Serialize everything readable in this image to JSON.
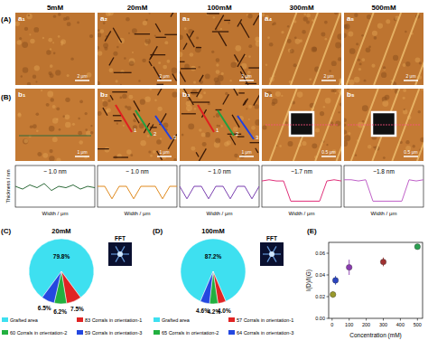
{
  "figure": {
    "row_labels": [
      "(A)",
      "(B)"
    ],
    "a_titles": [
      "5mM",
      "20mM",
      "100mM",
      "300mM",
      "500mM"
    ],
    "a_panels": [
      "a₁",
      "a₂",
      "a₃",
      "a₄",
      "a₅"
    ],
    "b_panels": [
      "b₁",
      "b₂",
      "b₃",
      "b₄",
      "b₅"
    ],
    "a_scale_bars": [
      "2 μm",
      "2 μm",
      "2 μm",
      "2 μm",
      "2 μm"
    ],
    "b_scale_bars": [
      "1 μm",
      "1 μm",
      "1 μm",
      "0.5 μm",
      "0.5 μm"
    ],
    "b2_markers": [
      "1",
      "2",
      "3"
    ],
    "b3_markers": [
      "1",
      "2",
      "3"
    ]
  },
  "chart_data": [
    {
      "type": "line",
      "ylabel": "Thickness / nm",
      "xlabel": "Width / μm",
      "annotation": "~ 1.0 nm",
      "color": "#2e6b3a",
      "tick_labels": false,
      "x": [
        0,
        0.5,
        1,
        1.5,
        2,
        2.5,
        3,
        3.5,
        4,
        4.5,
        5,
        5.5
      ],
      "values": [
        1.0,
        0.8,
        1.1,
        0.9,
        1.2,
        0.7,
        1.0,
        0.9,
        1.1,
        0.8,
        1.0,
        0.9
      ],
      "xlim": [
        0,
        5.5
      ],
      "ylim": [
        -0.5,
        2.5
      ]
    },
    {
      "type": "line",
      "xlabel": "Width / μm",
      "annotation": "~ 1.0 nm",
      "color": "#e08a1e",
      "tick_labels": false,
      "x": [
        0,
        0.5,
        1,
        1.5,
        2,
        2.5,
        3,
        3.5,
        4,
        4.5,
        5,
        5.5
      ],
      "values": [
        1.0,
        1.0,
        0.1,
        1.0,
        1.0,
        0.1,
        1.0,
        1.0,
        1.0,
        0.1,
        1.0,
        1.0
      ],
      "xlim": [
        0,
        5.5
      ],
      "ylim": [
        -0.5,
        2.5
      ]
    },
    {
      "type": "line",
      "xlabel": "Width / μm",
      "annotation": "~ 1.0 nm",
      "color": "#7a3fb0",
      "tick_labels": false,
      "x": [
        0,
        0.5,
        1,
        1.5,
        2,
        2.5,
        3,
        3.5,
        4,
        4.5,
        5,
        5.5
      ],
      "values": [
        1.0,
        0.1,
        1.0,
        1.0,
        0.1,
        1.0,
        1.0,
        0.1,
        1.0,
        1.0,
        0.1,
        1.0
      ],
      "xlim": [
        0,
        5.5
      ],
      "ylim": [
        -0.5,
        2.5
      ]
    },
    {
      "type": "line",
      "xlabel": "Width / μm",
      "annotation": "~1.7 nm",
      "color": "#e0307a",
      "tick_labels": false,
      "x": [
        0,
        0.5,
        1,
        1.5,
        2,
        2.5,
        3,
        3.5,
        4,
        4.5,
        5,
        5.5
      ],
      "values": [
        1.7,
        1.8,
        1.7,
        1.7,
        0,
        0,
        0,
        0,
        0,
        1.7,
        1.8,
        1.7
      ],
      "xlim": [
        0,
        5.5
      ],
      "ylim": [
        -0.5,
        3
      ]
    },
    {
      "type": "line",
      "xlabel": "Width / μm",
      "annotation": "~1.8 nm",
      "color": "#c060c8",
      "tick_labels": false,
      "x": [
        0,
        0.5,
        1,
        1.5,
        2,
        2.5,
        3,
        3.5,
        4,
        4.5,
        5,
        5.5
      ],
      "values": [
        1.8,
        1.8,
        1.7,
        1.8,
        0,
        0,
        0,
        0,
        0,
        1.8,
        1.7,
        1.8
      ],
      "xlim": [
        0,
        5.5
      ],
      "ylim": [
        -0.5,
        3
      ]
    },
    {
      "type": "pie",
      "panel_label": "(C)",
      "title": "20mM",
      "inset_label": "FFT",
      "categories": [
        "Grafted area",
        "83 Corrals in orientation-1",
        "60 Corrals in orientation-2",
        "59 Corrals in orientation-3"
      ],
      "values": [
        79.8,
        7.5,
        6.2,
        6.5
      ],
      "value_labels": [
        "79.8%",
        "7.5%",
        "6.2%",
        "6.5%"
      ],
      "colors": [
        "#3ee0f0",
        "#e02424",
        "#22b040",
        "#2448e0"
      ],
      "data_labels": true
    },
    {
      "type": "pie",
      "panel_label": "(D)",
      "title": "100mM",
      "inset_label": "FFT",
      "categories": [
        "Grafted area",
        "57 Corrals in orientation-1",
        "65 Corrals in orientation-2",
        "64 Corrals in orientation-3"
      ],
      "values": [
        87.2,
        4.0,
        4.2,
        4.6
      ],
      "value_labels": [
        "87.2%",
        "4.0%",
        "4.2%",
        "4.6%"
      ],
      "colors": [
        "#3ee0f0",
        "#e02424",
        "#22b040",
        "#2448e0"
      ],
      "data_labels": true
    },
    {
      "type": "scatter",
      "panel_label": "(E)",
      "xlabel": "Concentration (mM)",
      "ylabel": "I(D)/I(G)",
      "x": [
        5,
        20,
        100,
        300,
        500
      ],
      "values": [
        0.022,
        0.035,
        0.047,
        0.052,
        0.066
      ],
      "errors": [
        0.003,
        0.004,
        0.007,
        0.004,
        0.002
      ],
      "colors": [
        "#9a9a2a",
        "#2a44c0",
        "#8a3ab0",
        "#a03030",
        "#2aa050"
      ],
      "xlim": [
        -20,
        530
      ],
      "ylim": [
        0,
        0.07
      ],
      "xticks": [
        0,
        100,
        200,
        300,
        400,
        500
      ],
      "yticks": [
        {
          "value": 0,
          "label": "0.00"
        },
        {
          "value": 0.02,
          "label": "0.02"
        },
        {
          "value": 0.04,
          "label": "0.04"
        },
        {
          "value": 0.06,
          "label": "0.06"
        }
      ]
    }
  ]
}
